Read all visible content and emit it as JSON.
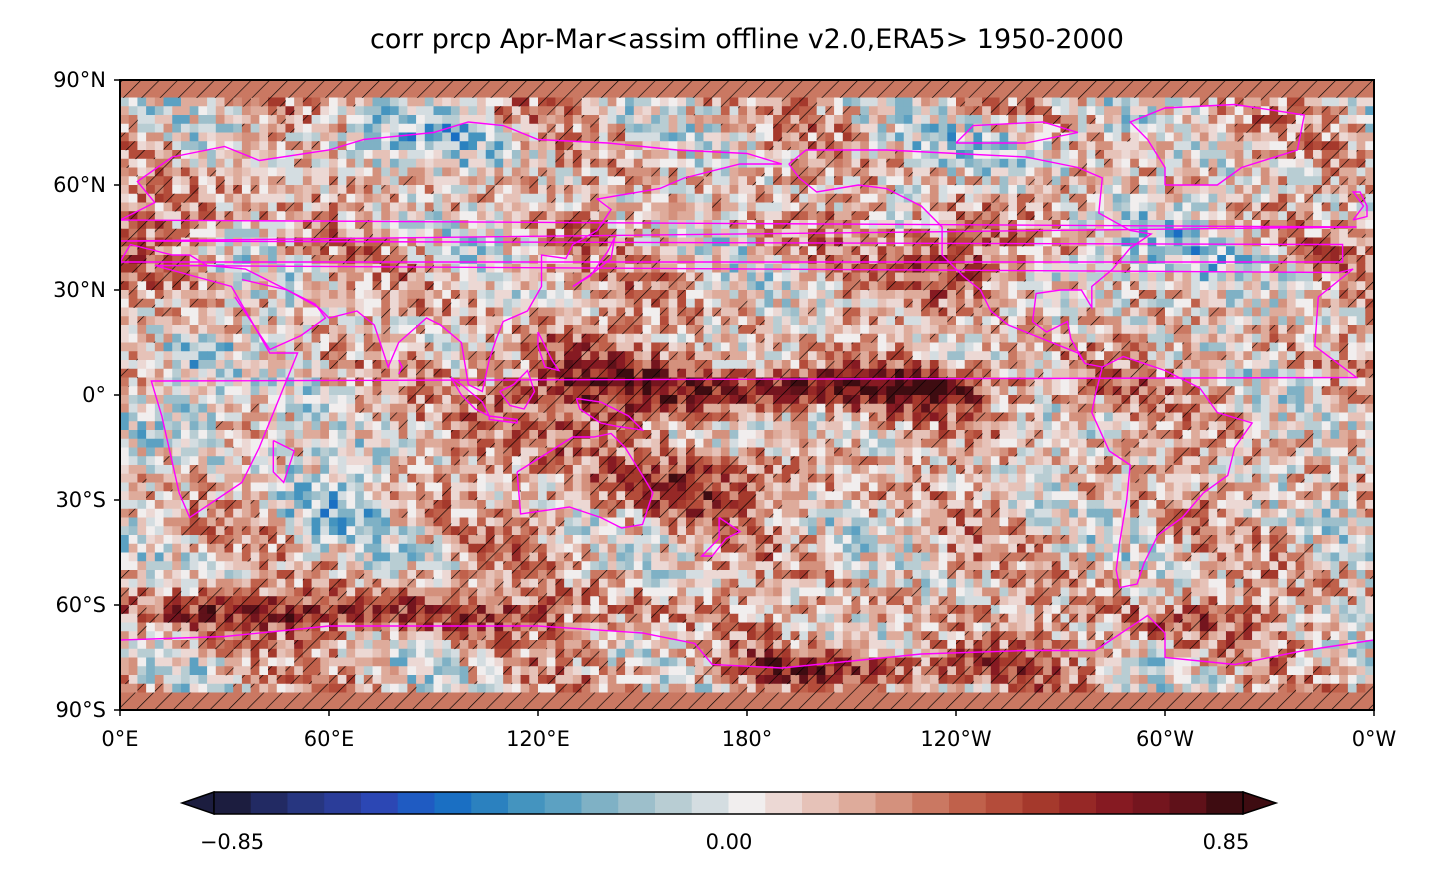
{
  "map": {
    "title": "corr prcp Apr-Mar<assim offline v2.0,ERA5> 1950-2000",
    "lat_ticks": [
      "90°N",
      "60°N",
      "30°N",
      "0°",
      "30°S",
      "60°S",
      "90°S"
    ],
    "lon_ticks": [
      "0°E",
      "60°E",
      "120°E",
      "180°",
      "120°W",
      "60°W",
      "0°W"
    ],
    "coastline_color": "#ff00ff",
    "hatch_meaning": "significant",
    "colormap": "diverging blue-white-red",
    "colorbar": {
      "min": -0.85,
      "max": 0.85,
      "tick_labels": [
        "−0.85",
        "0.00",
        "0.85"
      ],
      "colors": [
        "#1c1d3f",
        "#222a63",
        "#273680",
        "#2b3d99",
        "#2c47b4",
        "#1f5bc2",
        "#1a6fc3",
        "#2b81bf",
        "#4494bf",
        "#5ca1c2",
        "#7fb1c5",
        "#9dbfcb",
        "#b8cdd3",
        "#d4dde1",
        "#f1eeee",
        "#ecd8d4",
        "#e6c2b8",
        "#deab9b",
        "#d4917d",
        "#ca7862",
        "#c0614b",
        "#b44c3a",
        "#a5392c",
        "#962826",
        "#861a22",
        "#74151e",
        "#5f1119",
        "#3e0c11"
      ]
    }
  }
}
